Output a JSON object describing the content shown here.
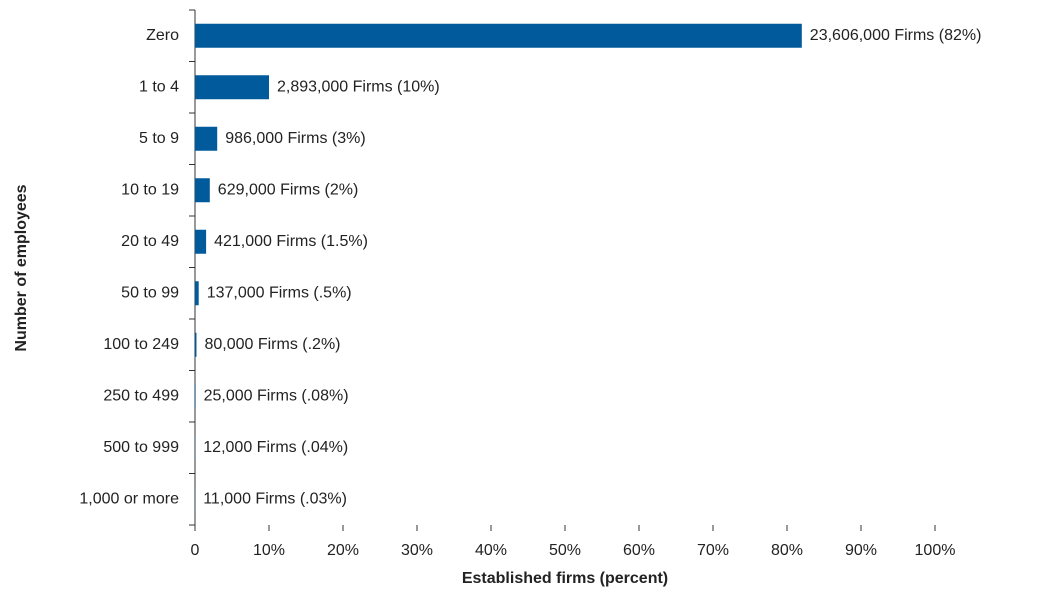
{
  "chart_data": {
    "type": "bar",
    "orientation": "horizontal",
    "xlabel": "Established firms (percent)",
    "ylabel": "Number of employees",
    "categories": [
      "Zero",
      "1 to 4",
      "5 to 9",
      "10 to 19",
      "20 to 49",
      "50 to 99",
      "100 to 249",
      "250 to 499",
      "500 to 999",
      "1,000 or more"
    ],
    "values": [
      82,
      10,
      3,
      2,
      1.5,
      0.5,
      0.2,
      0.08,
      0.04,
      0.03
    ],
    "value_labels": [
      "23,606,000 Firms (82%)",
      "2,893,000 Firms (10%)",
      "986,000 Firms (3%)",
      "629,000 Firms (2%)",
      "421,000 Firms (1.5%)",
      "137,000 Firms (.5%)",
      "80,000 Firms (.2%)",
      "25,000 Firms (.08%)",
      "12,000 Firms (.04%)",
      "11,000 Firms (.03%)"
    ],
    "color": "#005a9c",
    "xlim": [
      0,
      100
    ],
    "xticks": [
      0,
      {
        "value": 10,
        "label": "10%"
      },
      {
        "value": 20,
        "label": "20%"
      },
      {
        "value": 30,
        "label": "30%"
      },
      {
        "value": 40,
        "label": "40%"
      },
      {
        "value": 50,
        "label": "50%"
      },
      {
        "value": 60,
        "label": "60%"
      },
      {
        "value": 70,
        "label": "70%"
      },
      {
        "value": 80,
        "label": "80%"
      },
      {
        "value": 90,
        "label": "90%"
      },
      {
        "value": 100,
        "label": "100%"
      }
    ]
  }
}
